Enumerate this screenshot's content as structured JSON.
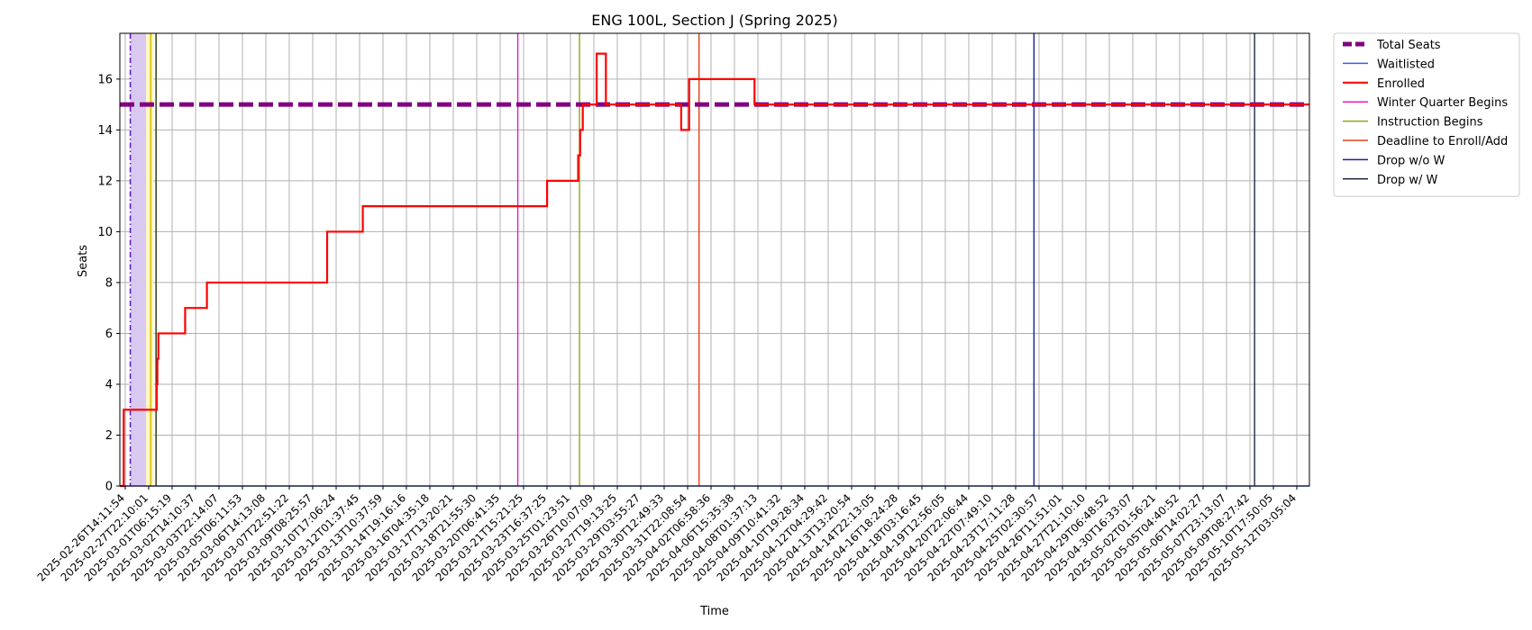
{
  "chart_data": {
    "type": "line",
    "title": "ENG 100L, Section J (Spring 2025)",
    "xlabel": "Time",
    "ylabel": "Seats",
    "x_axis_type": "datetime",
    "xlim": [
      "2025-02-26T14:11:54",
      "2025-05-12T15:00:00"
    ],
    "ylim": [
      0,
      17.8
    ],
    "y_ticks": [
      0,
      2,
      4,
      6,
      8,
      10,
      12,
      14,
      16
    ],
    "x_tick_labels": [
      "2025-02-26T14:11:54",
      "2025-02-27T22:10:01",
      "2025-03-01T06:15:19",
      "2025-03-02T14:10:37",
      "2025-03-03T22:14:07",
      "2025-03-05T06:11:53",
      "2025-03-06T14:13:08",
      "2025-03-07T22:51:22",
      "2025-03-09T08:25:57",
      "2025-03-10T17:06:24",
      "2025-03-12T01:37:45",
      "2025-03-13T10:37:59",
      "2025-03-14T19:16:16",
      "2025-03-16T04:35:18",
      "2025-03-17T13:20:21",
      "2025-03-18T21:55:30",
      "2025-03-20T06:41:35",
      "2025-03-21T15:21:25",
      "2025-03-23T16:37:25",
      "2025-03-25T01:23:51",
      "2025-03-26T10:07:09",
      "2025-03-27T19:13:25",
      "2025-03-29T03:55:27",
      "2025-03-30T12:49:33",
      "2025-03-31T22:08:54",
      "2025-04-02T06:58:36",
      "2025-04-06T15:35:38",
      "2025-04-08T01:37:13",
      "2025-04-09T10:41:32",
      "2025-04-10T19:28:34",
      "2025-04-12T04:29:42",
      "2025-04-13T13:20:54",
      "2025-04-14T22:13:05",
      "2025-04-16T18:24:28",
      "2025-04-18T03:16:45",
      "2025-04-19T12:56:05",
      "2025-04-20T22:06:44",
      "2025-04-22T07:49:10",
      "2025-04-23T17:11:28",
      "2025-04-25T02:30:57",
      "2025-04-26T11:51:01",
      "2025-04-27T21:10:10",
      "2025-04-29T06:48:52",
      "2025-04-30T16:33:07",
      "2025-05-02T01:56:21",
      "2025-05-05T04:40:52",
      "2025-05-06T14:02:27",
      "2025-05-07T23:13:07",
      "2025-05-09T08:27:42",
      "2025-05-10T17:50:05",
      "2025-05-12T03:05:04"
    ],
    "grid": true,
    "legend_position": "outside-top-right",
    "legend": [
      {
        "label": "Total Seats",
        "color": "#800080",
        "style": "dashed-thick"
      },
      {
        "label": "Waitlisted",
        "color": "#3a5fe6",
        "style": "solid-thin"
      },
      {
        "label": "Enrolled",
        "color": "#ff0000",
        "style": "solid"
      },
      {
        "label": "Winter Quarter Begins",
        "color": "#e619c4",
        "style": "solid-thin"
      },
      {
        "label": "Instruction Begins",
        "color": "#8aaa14",
        "style": "solid-thin"
      },
      {
        "label": "Deadline to Enroll/Add",
        "color": "#e0401a",
        "style": "solid-thin"
      },
      {
        "label": "Drop w/o W",
        "color": "#1a1aa8",
        "style": "solid-thin"
      },
      {
        "label": "Drop w/ W",
        "color": "#1c2a44",
        "style": "solid-thin"
      }
    ],
    "series": [
      {
        "name": "Total Seats",
        "color": "#800080",
        "step": true,
        "points": [
          [
            "2025-02-26T14:11:54",
            15
          ],
          [
            "2025-05-12T15:00:00",
            15
          ]
        ]
      },
      {
        "name": "Waitlisted",
        "color": "#3a5fe6",
        "step": true,
        "points": [
          [
            "2025-02-26T14:11:54",
            0
          ],
          [
            "2025-05-12T15:00:00",
            0
          ]
        ]
      },
      {
        "name": "Enrolled",
        "color": "#ff0000",
        "step": true,
        "points": [
          [
            "2025-02-26T14:11:54",
            0
          ],
          [
            "2025-02-26T20:00:00",
            3
          ],
          [
            "2025-02-28T22:00:00",
            4
          ],
          [
            "2025-02-28T23:00:00",
            5
          ],
          [
            "2025-03-01T00:30:00",
            6
          ],
          [
            "2025-03-02T17:00:00",
            7
          ],
          [
            "2025-03-04T02:00:00",
            8
          ],
          [
            "2025-03-11T16:00:00",
            10
          ],
          [
            "2025-03-13T22:00:00",
            11
          ],
          [
            "2025-03-25T13:00:00",
            12
          ],
          [
            "2025-03-27T12:00:00",
            13
          ],
          [
            "2025-03-27T15:00:00",
            14
          ],
          [
            "2025-03-27T19:00:00",
            15
          ],
          [
            "2025-03-28T16:00:00",
            17
          ],
          [
            "2025-03-29T06:00:00",
            15
          ],
          [
            "2025-04-03T00:00:00",
            14
          ],
          [
            "2025-04-03T12:00:00",
            16
          ],
          [
            "2025-04-07T15:00:00",
            15
          ],
          [
            "2025-05-12T15:00:00",
            15
          ]
        ]
      }
    ],
    "vertical_markers": [
      {
        "name": "Winter Quarter Begins",
        "date": "2025-03-23T16:37:25",
        "color": "#e619c4"
      },
      {
        "name": "Instruction Begins",
        "date": "2025-03-27T14:00:00",
        "color": "#8aaa14"
      },
      {
        "name": "Deadline to Enroll/Add",
        "date": "2025-04-04T03:00:00",
        "color": "#e0401a"
      },
      {
        "name": "Drop w/o W",
        "date": "2025-04-25T06:00:00",
        "color": "#1a1aa8"
      },
      {
        "name": "Drop w/ W",
        "date": "2025-05-09T04:00:00",
        "color": "#1c2a44"
      }
    ],
    "shaded_regions": [
      {
        "start": "2025-02-27T06:00:00",
        "end": "2025-02-28T06:00:00",
        "color": "#d9c8f0"
      },
      {
        "start": "2025-02-28T06:00:00",
        "end": "2025-02-28T17:00:00",
        "color": "#fff6c0"
      }
    ],
    "extra_vertical_lines": [
      {
        "date": "2025-02-27T06:00:00",
        "color": "#6a1ad0",
        "dash": "dashdot"
      },
      {
        "date": "2025-02-28T13:00:00",
        "color": "#d0c000",
        "dash": "solid"
      },
      {
        "date": "2025-02-28T21:00:00",
        "color": "#3a4a2a",
        "dash": "solid"
      }
    ]
  }
}
